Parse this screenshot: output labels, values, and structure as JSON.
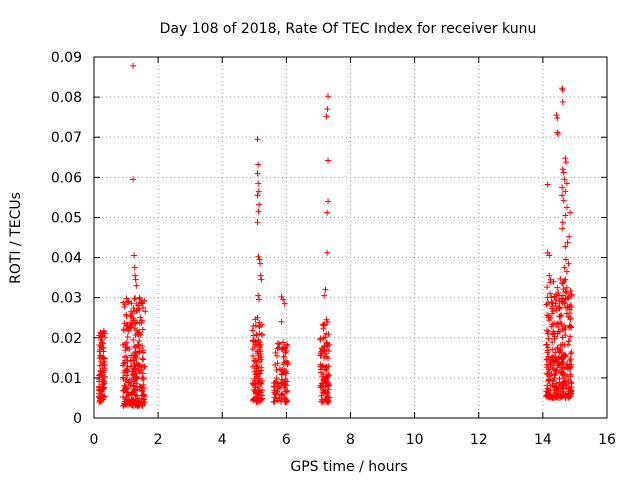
{
  "chart_data": {
    "type": "scatter",
    "title": "Day 108 of 2018, Rate Of TEC Index for receiver kunu",
    "xlabel": "GPS time / hours",
    "ylabel": "ROTI / TECUs",
    "xlim": [
      0,
      16
    ],
    "ylim": [
      0,
      0.09
    ],
    "xticks": [
      0,
      2,
      4,
      6,
      8,
      10,
      12,
      14,
      16
    ],
    "xtick_labels": [
      "0",
      "2",
      "4",
      "6",
      "8",
      "10",
      "12",
      "14",
      "16"
    ],
    "yticks": [
      0,
      0.01,
      0.02,
      0.03,
      0.04,
      0.05,
      0.06,
      0.07,
      0.08,
      0.09
    ],
    "ytick_labels": [
      "0",
      "0.01",
      "0.02",
      "0.03",
      "0.04",
      "0.05",
      "0.06",
      "0.07",
      "0.08",
      "0.09"
    ],
    "grid": true,
    "marker": "+",
    "color": "#ff0000",
    "series": [
      {
        "name": "ROTI",
        "clusters": [
          {
            "x_range": [
              0.15,
              0.35
            ],
            "y_range": [
              0.004,
              0.022
            ],
            "count": 90
          },
          {
            "x_range": [
              0.9,
              1.6
            ],
            "y_range": [
              0.003,
              0.03
            ],
            "count": 260
          },
          {
            "x_range": [
              4.95,
              5.25
            ],
            "y_range": [
              0.004,
              0.025
            ],
            "count": 110
          },
          {
            "x_range": [
              5.6,
              6.05
            ],
            "y_range": [
              0.004,
              0.019
            ],
            "count": 90
          },
          {
            "x_range": [
              7.05,
              7.35
            ],
            "y_range": [
              0.004,
              0.024
            ],
            "count": 100
          },
          {
            "x_range": [
              14.1,
              14.9
            ],
            "y_range": [
              0.005,
              0.035
            ],
            "count": 300
          }
        ],
        "points": [
          [
            1.22,
            0.0878
          ],
          [
            1.22,
            0.0595
          ],
          [
            1.25,
            0.0405
          ],
          [
            1.27,
            0.0375
          ],
          [
            1.28,
            0.0355
          ],
          [
            1.3,
            0.0345
          ],
          [
            1.32,
            0.033
          ],
          [
            1.5,
            0.0285
          ],
          [
            5.1,
            0.0695
          ],
          [
            5.12,
            0.0632
          ],
          [
            5.1,
            0.061
          ],
          [
            5.12,
            0.0585
          ],
          [
            5.14,
            0.0565
          ],
          [
            5.1,
            0.0555
          ],
          [
            5.13,
            0.0515
          ],
          [
            5.15,
            0.0532
          ],
          [
            5.1,
            0.0488
          ],
          [
            5.13,
            0.0402
          ],
          [
            5.16,
            0.0395
          ],
          [
            5.18,
            0.0385
          ],
          [
            5.2,
            0.0355
          ],
          [
            5.22,
            0.0345
          ],
          [
            5.12,
            0.0305
          ],
          [
            5.15,
            0.0295
          ],
          [
            5.85,
            0.0302
          ],
          [
            5.9,
            0.0295
          ],
          [
            5.85,
            0.024
          ],
          [
            5.95,
            0.0285
          ],
          [
            7.3,
            0.0802
          ],
          [
            7.28,
            0.077
          ],
          [
            7.25,
            0.0752
          ],
          [
            7.3,
            0.0642
          ],
          [
            7.3,
            0.054
          ],
          [
            7.27,
            0.0512
          ],
          [
            7.27,
            0.0412
          ],
          [
            7.22,
            0.032
          ],
          [
            7.18,
            0.0305
          ],
          [
            7.25,
            0.0245
          ],
          [
            14.6,
            0.0822
          ],
          [
            14.62,
            0.0818
          ],
          [
            14.62,
            0.0788
          ],
          [
            14.42,
            0.0755
          ],
          [
            14.45,
            0.0748
          ],
          [
            14.45,
            0.0712
          ],
          [
            14.47,
            0.0708
          ],
          [
            14.7,
            0.0648
          ],
          [
            14.72,
            0.0638
          ],
          [
            14.62,
            0.062
          ],
          [
            14.65,
            0.0612
          ],
          [
            14.67,
            0.0595
          ],
          [
            14.75,
            0.0585
          ],
          [
            14.15,
            0.0582
          ],
          [
            14.6,
            0.0575
          ],
          [
            14.7,
            0.0565
          ],
          [
            14.6,
            0.0555
          ],
          [
            14.65,
            0.0542
          ],
          [
            14.75,
            0.0525
          ],
          [
            14.85,
            0.0512
          ],
          [
            14.7,
            0.0505
          ],
          [
            14.62,
            0.0488
          ],
          [
            14.6,
            0.0472
          ],
          [
            14.82,
            0.0452
          ],
          [
            14.77,
            0.0438
          ],
          [
            14.7,
            0.0428
          ],
          [
            14.15,
            0.0412
          ],
          [
            14.2,
            0.0405
          ],
          [
            14.72,
            0.0395
          ],
          [
            14.8,
            0.0385
          ],
          [
            14.67,
            0.0375
          ],
          [
            14.75,
            0.0365
          ],
          [
            14.2,
            0.0355
          ],
          [
            14.7,
            0.0345
          ],
          [
            14.6,
            0.0335
          ],
          [
            14.45,
            0.0325
          ],
          [
            14.48,
            0.0312
          ],
          [
            14.5,
            0.0305
          ],
          [
            14.8,
            0.0302
          ],
          [
            14.65,
            0.0295
          ],
          [
            14.4,
            0.0285
          ],
          [
            14.72,
            0.0275
          ]
        ]
      }
    ]
  }
}
